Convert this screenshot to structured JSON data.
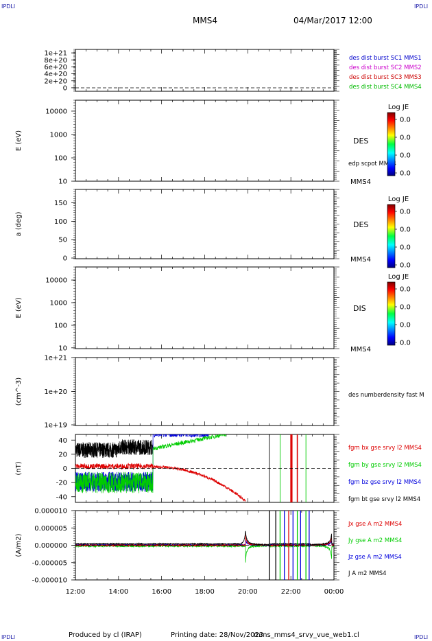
{
  "header": {
    "corner_label": "IPDLI",
    "spacecraft": "MMS4",
    "datetime": "04/Mar/2017 12:00"
  },
  "footer": {
    "produced_by": "Produced by cl (IRAP)",
    "printing_date": "Printing date: 28/Nov/2023",
    "filename": "mms_mms4_srvy_vue_web1.cl"
  },
  "time_axis": {
    "ticks": [
      "12:00",
      "14:00",
      "16:00",
      "18:00",
      "20:00",
      "22:00",
      "00:00"
    ],
    "range_hours": [
      12,
      24
    ]
  },
  "chart_data": [
    {
      "type": "line",
      "panel": "dist-burst",
      "ylabel": "",
      "ylim": [
        0,
        1e+21
      ],
      "ytick_labels": [
        "1e+21",
        "8e+20",
        "6e+20",
        "4e+20",
        "2e+20",
        "0"
      ],
      "series": [
        {
          "name": "des dist burst SC1 MMS1",
          "color": "#0000cc"
        },
        {
          "name": "des dist burst SC2 MMS2",
          "color": "#cc00cc"
        },
        {
          "name": "des dist burst SC3 MMS3",
          "color": "#cc0000"
        },
        {
          "name": "des dist burst SC4 MMS4",
          "color": "#00bb00"
        }
      ],
      "dashed_zero_line": true
    },
    {
      "type": "heatmap",
      "panel": "des-energy",
      "ylabel": "E (eV)",
      "scale": "log",
      "ylim": [
        10,
        20000
      ],
      "ytick_labels": [
        "10000",
        "1000",
        "100",
        "10"
      ],
      "instrument": "DES",
      "overlay_label": "edp scpot MMS4",
      "probe": "MMS4",
      "colorbar": {
        "title": "Log JE",
        "ticks": [
          "0.0",
          "0.0",
          "0.0",
          "0.0"
        ]
      }
    },
    {
      "type": "heatmap",
      "panel": "des-pitch",
      "ylabel": "a (deg)",
      "ylim": [
        0,
        180
      ],
      "ytick_labels": [
        "150",
        "100",
        "50",
        "0"
      ],
      "instrument": "DES",
      "probe": "MMS4",
      "colorbar": {
        "title": "Log JE",
        "ticks": [
          "0.0",
          "0.0",
          "0.0",
          "0.0"
        ]
      }
    },
    {
      "type": "heatmap",
      "panel": "dis-energy",
      "ylabel": "E (eV)",
      "scale": "log",
      "ylim": [
        10,
        20000
      ],
      "ytick_labels": [
        "10000",
        "1000",
        "100",
        "10"
      ],
      "instrument": "DIS",
      "probe": "MMS4",
      "colorbar": {
        "title": "Log JE",
        "ticks": [
          "0.0",
          "0.0",
          "0.0",
          "0.0"
        ]
      }
    },
    {
      "type": "line",
      "panel": "density",
      "ylabel": "(cm^-3)",
      "scale": "log",
      "ylim": [
        1e+19,
        1e+21
      ],
      "ytick_labels": [
        "1e+21",
        "1e+20",
        "1e+19"
      ],
      "series": [
        {
          "name": "des numberdensity fast M",
          "color": "#000000"
        }
      ]
    },
    {
      "type": "line",
      "panel": "fgm",
      "ylabel": "(nT)",
      "ylim": [
        -48,
        48
      ],
      "ytick_labels": [
        "40",
        "20",
        "0",
        "-20",
        "-40"
      ],
      "dashed_zero_line": true,
      "series": [
        {
          "name": "fgm bx gse srvy l2 MMS4",
          "color": "#dd0000"
        },
        {
          "name": "fgm by gse srvy l2 MMS4",
          "color": "#00cc00"
        },
        {
          "name": "fgm bz gse srvy l2 MMS4",
          "color": "#0000dd"
        },
        {
          "name": "fgm bt gse srvy l2 MMS4",
          "color": "#000000"
        }
      ]
    },
    {
      "type": "line",
      "panel": "current",
      "ylabel": "(A/m2)",
      "ylim": [
        -1e-05,
        1e-05
      ],
      "ytick_labels": [
        "0.000010",
        "0.000005",
        "0.000000",
        "-0.000005",
        "-0.000010"
      ],
      "dashed_zero_line": true,
      "series": [
        {
          "name": "Jx gse A m2 MMS4",
          "color": "#dd0000"
        },
        {
          "name": "Jy gse A m2 MMS4",
          "color": "#00cc00"
        },
        {
          "name": "Jz gse A m2 MMS4",
          "color": "#0000dd"
        },
        {
          "name": "J A m2 MMS4",
          "color": "#000000"
        }
      ]
    }
  ]
}
